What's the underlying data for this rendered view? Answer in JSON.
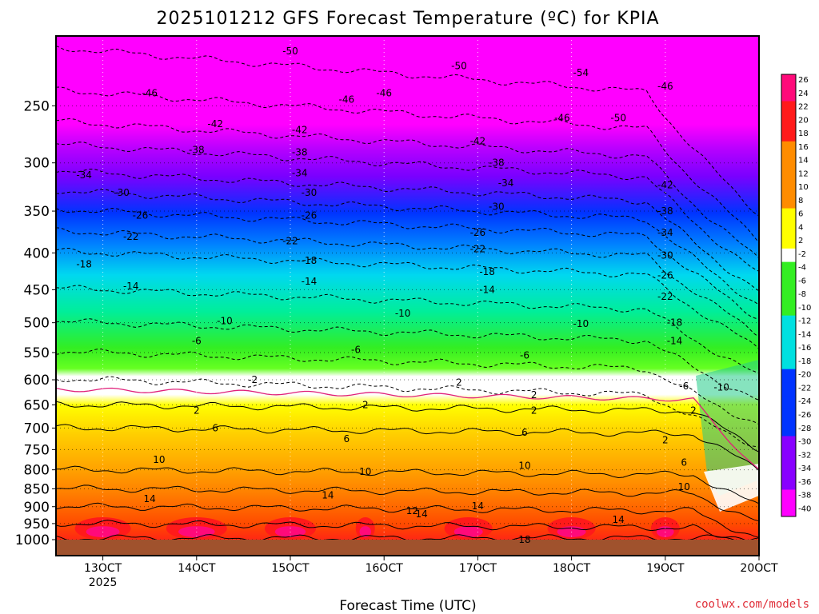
{
  "chart_data": {
    "type": "heatmap",
    "title": "2025101212 GFS Forecast Temperature (ºC) for KPIA",
    "xlabel": "Forecast Time (UTC)",
    "ylabel": "",
    "credit": "coolwx.com/models",
    "x_ticks": [
      {
        "value": 13,
        "label": "13OCT",
        "sublabel": "2025"
      },
      {
        "value": 14,
        "label": "14OCT"
      },
      {
        "value": 15,
        "label": "15OCT"
      },
      {
        "value": 16,
        "label": "16OCT"
      },
      {
        "value": 17,
        "label": "17OCT"
      },
      {
        "value": 18,
        "label": "18OCT"
      },
      {
        "value": 19,
        "label": "19OCT"
      },
      {
        "value": 20,
        "label": "20OCT"
      }
    ],
    "xlim": [
      12.5,
      20.0
    ],
    "y_ticks": [
      250,
      300,
      350,
      400,
      450,
      500,
      550,
      600,
      650,
      700,
      750,
      800,
      850,
      900,
      950,
      1000
    ],
    "ylim": [
      1000,
      200
    ],
    "y_unit": "hPa",
    "grid": true,
    "colorbar": {
      "levels": [
        26,
        24,
        22,
        20,
        18,
        16,
        14,
        12,
        10,
        8,
        6,
        4,
        2,
        -2,
        -4,
        -6,
        -8,
        -10,
        -12,
        -14,
        -16,
        -18,
        -20,
        -22,
        -24,
        -26,
        -28,
        -30,
        -32,
        -34,
        -36,
        -38,
        -40
      ],
      "colors": {
        "warmest": "#ff0a7a",
        "hot": "#ff1a1a",
        "orange": "#ff8c00",
        "yellow": "#ffff00",
        "zero": "#ffffff",
        "green": "#33ee22",
        "cyan": "#00e0e0",
        "blue": "#0033ff",
        "purple": "#8800ff",
        "coldest": "#ff00ff",
        "ground": "#a0522d"
      }
    },
    "temperature_profile_day13": [
      {
        "p": 1000,
        "t": 20
      },
      {
        "p": 950,
        "t": 19
      },
      {
        "p": 900,
        "t": 16
      },
      {
        "p": 850,
        "t": 13
      },
      {
        "p": 800,
        "t": 10
      },
      {
        "p": 700,
        "t": 6
      },
      {
        "p": 650,
        "t": 2
      },
      {
        "p": 600,
        "t": -2
      },
      {
        "p": 550,
        "t": -6
      },
      {
        "p": 500,
        "t": -10
      },
      {
        "p": 450,
        "t": -14
      },
      {
        "p": 400,
        "t": -18
      },
      {
        "p": 375,
        "t": -22
      },
      {
        "p": 350,
        "t": -26
      },
      {
        "p": 330,
        "t": -30
      },
      {
        "p": 310,
        "t": -34
      },
      {
        "p": 285,
        "t": -38
      },
      {
        "p": 265,
        "t": -42
      },
      {
        "p": 240,
        "t": -46
      },
      {
        "p": 210,
        "t": -50
      }
    ],
    "contour_labels": [
      {
        "text": "-50",
        "x": 15.0,
        "p": 210
      },
      {
        "text": "-46",
        "x": 13.5,
        "p": 240
      },
      {
        "text": "-42",
        "x": 14.2,
        "p": 265
      },
      {
        "text": "-38",
        "x": 14.0,
        "p": 288
      },
      {
        "text": "-34",
        "x": 12.8,
        "p": 312
      },
      {
        "text": "-30",
        "x": 13.2,
        "p": 330
      },
      {
        "text": "-26",
        "x": 13.4,
        "p": 355
      },
      {
        "text": "-22",
        "x": 13.3,
        "p": 380
      },
      {
        "text": "-18",
        "x": 12.8,
        "p": 415
      },
      {
        "text": "-14",
        "x": 13.3,
        "p": 445
      },
      {
        "text": "-10",
        "x": 14.3,
        "p": 497
      },
      {
        "text": "-6",
        "x": 14.0,
        "p": 530
      },
      {
        "text": "-2",
        "x": 14.6,
        "p": 600
      },
      {
        "text": "2",
        "x": 14.0,
        "p": 662
      },
      {
        "text": "6",
        "x": 14.2,
        "p": 700
      },
      {
        "text": "10",
        "x": 13.6,
        "p": 775
      },
      {
        "text": "14",
        "x": 13.5,
        "p": 878
      },
      {
        "text": "-50",
        "x": 16.8,
        "p": 220
      },
      {
        "text": "-46",
        "x": 15.6,
        "p": 245
      },
      {
        "text": "-42",
        "x": 15.1,
        "p": 270
      },
      {
        "text": "-38",
        "x": 15.1,
        "p": 290
      },
      {
        "text": "-34",
        "x": 15.1,
        "p": 310
      },
      {
        "text": "-30",
        "x": 15.2,
        "p": 330
      },
      {
        "text": "-26",
        "x": 15.2,
        "p": 355
      },
      {
        "text": "-22",
        "x": 15.0,
        "p": 385
      },
      {
        "text": "-18",
        "x": 15.2,
        "p": 410
      },
      {
        "text": "-14",
        "x": 15.2,
        "p": 438
      },
      {
        "text": "-6",
        "x": 15.7,
        "p": 545
      },
      {
        "text": "6",
        "x": 15.6,
        "p": 725
      },
      {
        "text": "10",
        "x": 15.8,
        "p": 805
      },
      {
        "text": "14",
        "x": 15.4,
        "p": 868
      },
      {
        "text": "-46",
        "x": 16.0,
        "p": 240
      },
      {
        "text": "-10",
        "x": 16.2,
        "p": 485
      },
      {
        "text": "2",
        "x": 16.8,
        "p": 605
      },
      {
        "text": "2",
        "x": 15.8,
        "p": 650
      },
      {
        "text": "12",
        "x": 16.3,
        "p": 912
      },
      {
        "text": "14",
        "x": 16.4,
        "p": 922
      },
      {
        "text": "-42",
        "x": 17.0,
        "p": 280
      },
      {
        "text": "-38",
        "x": 17.2,
        "p": 300
      },
      {
        "text": "-34",
        "x": 17.3,
        "p": 320
      },
      {
        "text": "-30",
        "x": 17.2,
        "p": 345
      },
      {
        "text": "-26",
        "x": 17.0,
        "p": 375
      },
      {
        "text": "-22",
        "x": 17.0,
        "p": 395
      },
      {
        "text": "-18",
        "x": 17.1,
        "p": 425
      },
      {
        "text": "-14",
        "x": 17.1,
        "p": 450
      },
      {
        "text": "-6",
        "x": 17.5,
        "p": 555
      },
      {
        "text": "6",
        "x": 17.5,
        "p": 710
      },
      {
        "text": "10",
        "x": 17.5,
        "p": 790
      },
      {
        "text": "14",
        "x": 17.0,
        "p": 898
      },
      {
        "text": "2",
        "x": 17.6,
        "p": 630
      },
      {
        "text": "2",
        "x": 17.6,
        "p": 662
      },
      {
        "text": "18",
        "x": 17.5,
        "p": 1000
      },
      {
        "text": "-54",
        "x": 18.1,
        "p": 225
      },
      {
        "text": "-46",
        "x": 17.9,
        "p": 260
      },
      {
        "text": "-50",
        "x": 18.5,
        "p": 260
      },
      {
        "text": "-10",
        "x": 18.1,
        "p": 502
      },
      {
        "text": "-46",
        "x": 19.0,
        "p": 235
      },
      {
        "text": "-42",
        "x": 19.0,
        "p": 322
      },
      {
        "text": "-38",
        "x": 19.0,
        "p": 350
      },
      {
        "text": "-34",
        "x": 19.0,
        "p": 375
      },
      {
        "text": "-30",
        "x": 19.0,
        "p": 403
      },
      {
        "text": "-26",
        "x": 19.0,
        "p": 430
      },
      {
        "text": "-22",
        "x": 19.0,
        "p": 460
      },
      {
        "text": "-18",
        "x": 19.1,
        "p": 500
      },
      {
        "text": "-14",
        "x": 19.1,
        "p": 530
      },
      {
        "text": "-10",
        "x": 19.6,
        "p": 615
      },
      {
        "text": "-6",
        "x": 19.2,
        "p": 612
      },
      {
        "text": "2",
        "x": 19.3,
        "p": 662
      },
      {
        "text": "2",
        "x": 19.0,
        "p": 728
      },
      {
        "text": "6",
        "x": 19.2,
        "p": 782
      },
      {
        "text": "10",
        "x": 19.2,
        "p": 845
      },
      {
        "text": "14",
        "x": 18.5,
        "p": 938
      }
    ]
  }
}
